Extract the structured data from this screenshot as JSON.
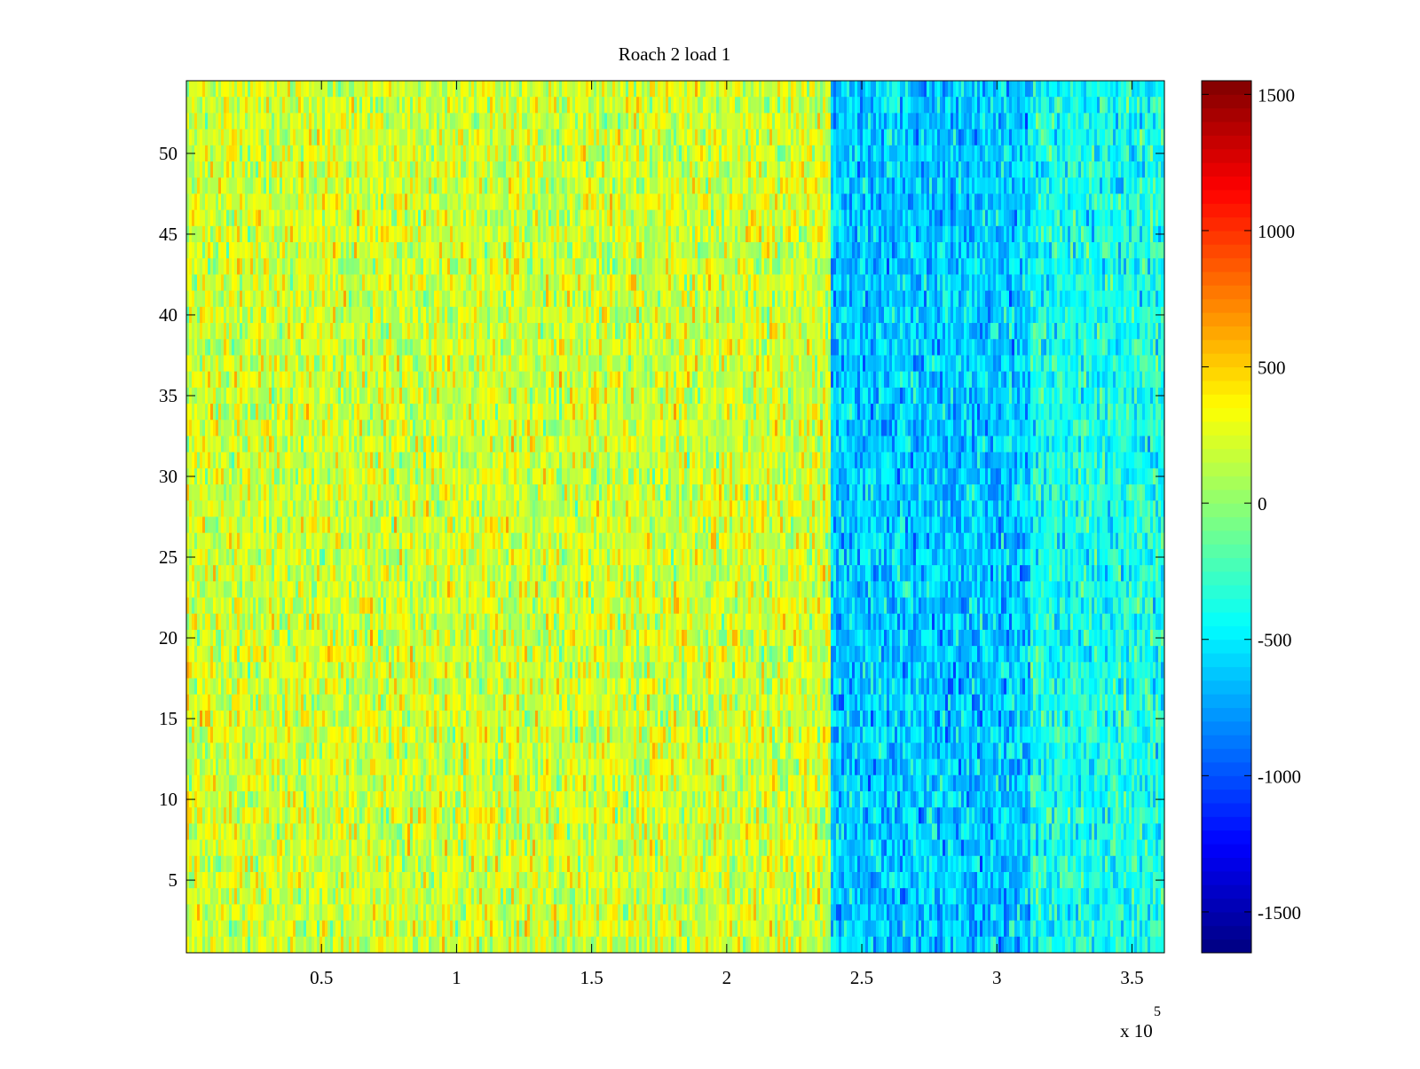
{
  "chart_data": {
    "type": "heatmap",
    "title": "Roach 2 load 1",
    "xlabel": "",
    "ylabel": "",
    "x_exponent_label": "x 10",
    "x_exponent_power": "5",
    "x_scale": 100000,
    "xlim": [
      0,
      362000
    ],
    "ylim": [
      0.5,
      54.5
    ],
    "x_ticks": [
      50000,
      100000,
      150000,
      200000,
      250000,
      300000,
      350000
    ],
    "x_tick_labels": [
      "0.5",
      "1",
      "1.5",
      "2",
      "2.5",
      "3",
      "3.5"
    ],
    "y_ticks": [
      5,
      10,
      15,
      20,
      25,
      30,
      35,
      40,
      45,
      50
    ],
    "y_tick_labels": [
      "5",
      "10",
      "15",
      "20",
      "25",
      "30",
      "35",
      "40",
      "45",
      "50"
    ],
    "rows": 54,
    "colormap": "jet",
    "clim": [
      -1650,
      1550
    ],
    "colorbar_ticks": [
      1500,
      1000,
      500,
      0,
      -500,
      -1000,
      -1500
    ],
    "colorbar_tick_labels": [
      "1500",
      "1000",
      "500",
      "0",
      "-500",
      "-1000",
      "-1500"
    ],
    "regions": [
      {
        "x_start": 0,
        "x_end": 238000,
        "mean_value": 200
      },
      {
        "x_start": 238000,
        "x_end": 312000,
        "mean_value": -620
      },
      {
        "x_start": 312000,
        "x_end": 362000,
        "mean_value": -380
      }
    ],
    "grid": false,
    "colorbar_position": "right"
  }
}
